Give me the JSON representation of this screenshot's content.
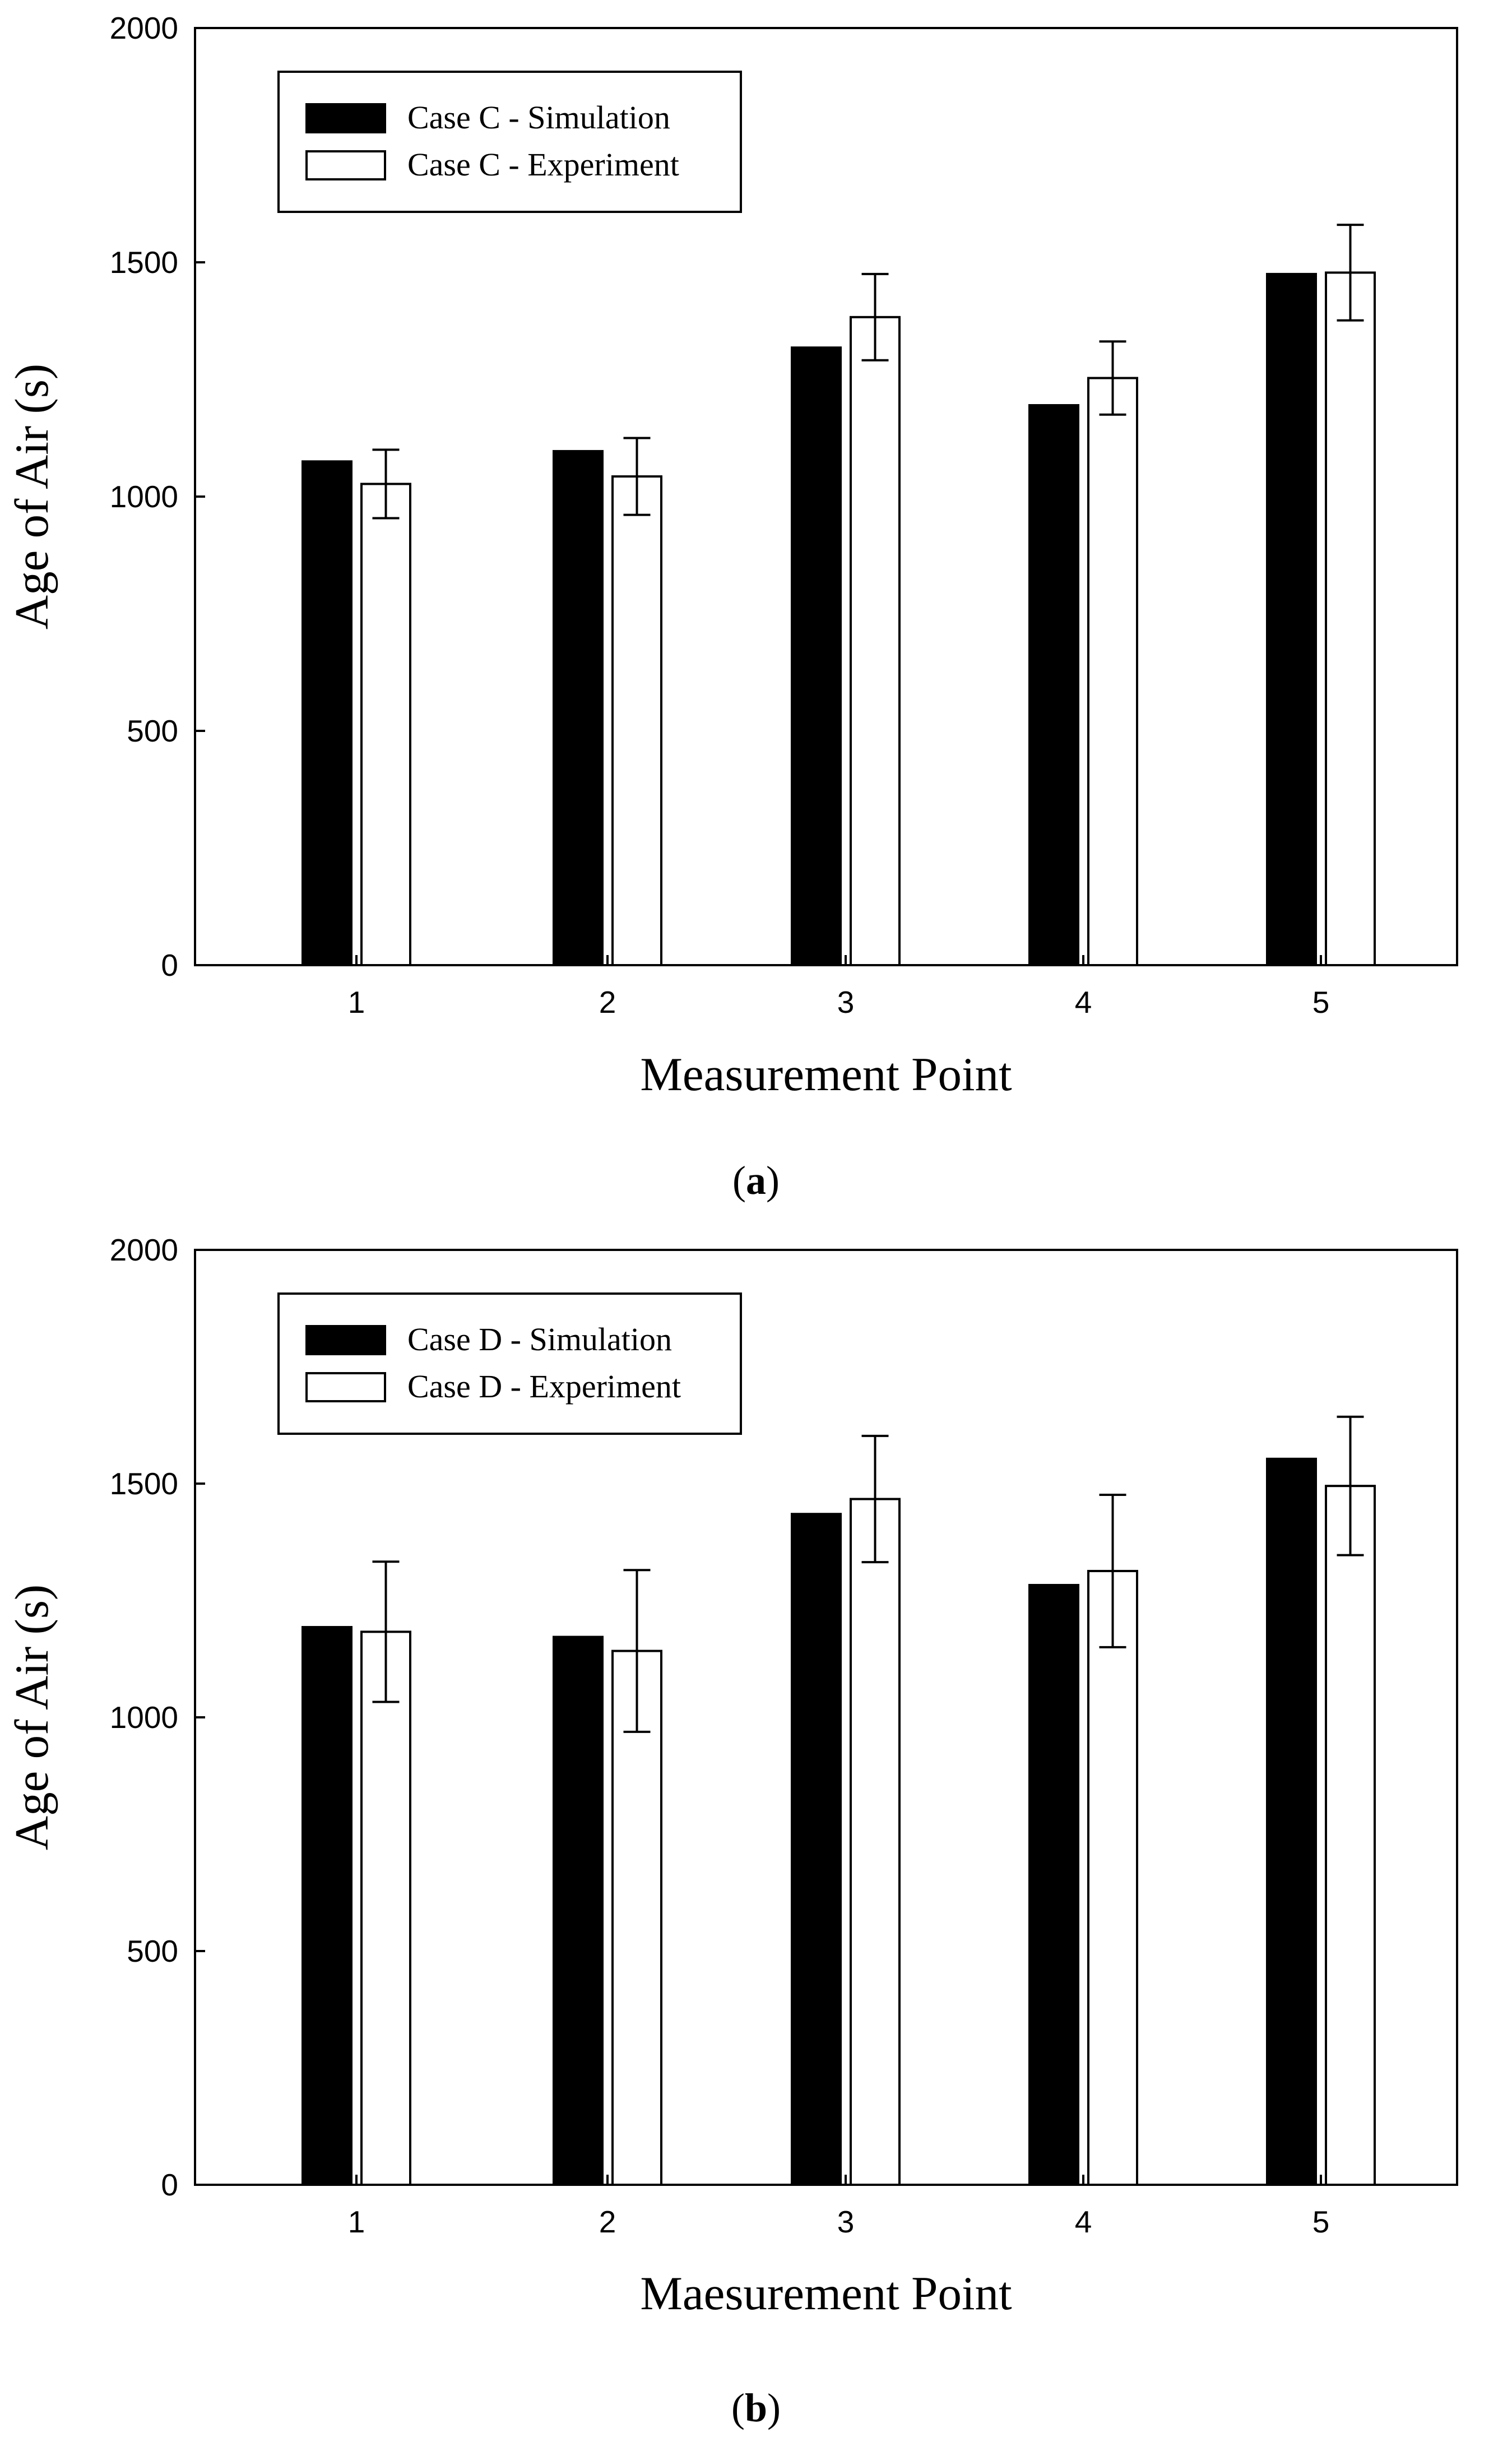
{
  "chart_data": [
    {
      "type": "bar",
      "caption_letter": "a",
      "xlabel": "Measurement Point",
      "ylabel": "Age of Air (s)",
      "ylim": [
        0,
        2000
      ],
      "yticks": [
        0,
        500,
        1000,
        1500,
        2000
      ],
      "categories": [
        "1",
        "2",
        "3",
        "4",
        "5"
      ],
      "legend_position": "top-left",
      "series": [
        {
          "name": "Case C - Simulation",
          "fill": "#000000",
          "values": [
            1075,
            1097,
            1318,
            1195,
            1475
          ]
        },
        {
          "name": "Case C - Experiment",
          "fill": "#ffffff",
          "values": [
            1027,
            1043,
            1383,
            1253,
            1478
          ],
          "error": [
            73,
            82,
            92,
            78,
            102
          ]
        }
      ]
    },
    {
      "type": "bar",
      "caption_letter": "b",
      "xlabel": "Maesurement Point",
      "ylabel": "Age of Air (s)",
      "ylim": [
        0,
        2000
      ],
      "yticks": [
        0,
        500,
        1000,
        1500,
        2000
      ],
      "categories": [
        "1",
        "2",
        "3",
        "4",
        "5"
      ],
      "legend_position": "top-left",
      "series": [
        {
          "name": "Case D - Simulation",
          "fill": "#000000",
          "values": [
            1193,
            1172,
            1435,
            1283,
            1553
          ]
        },
        {
          "name": "Case D - Experiment",
          "fill": "#ffffff",
          "values": [
            1183,
            1142,
            1467,
            1313,
            1495
          ],
          "error": [
            150,
            173,
            135,
            163,
            148
          ]
        }
      ]
    }
  ]
}
